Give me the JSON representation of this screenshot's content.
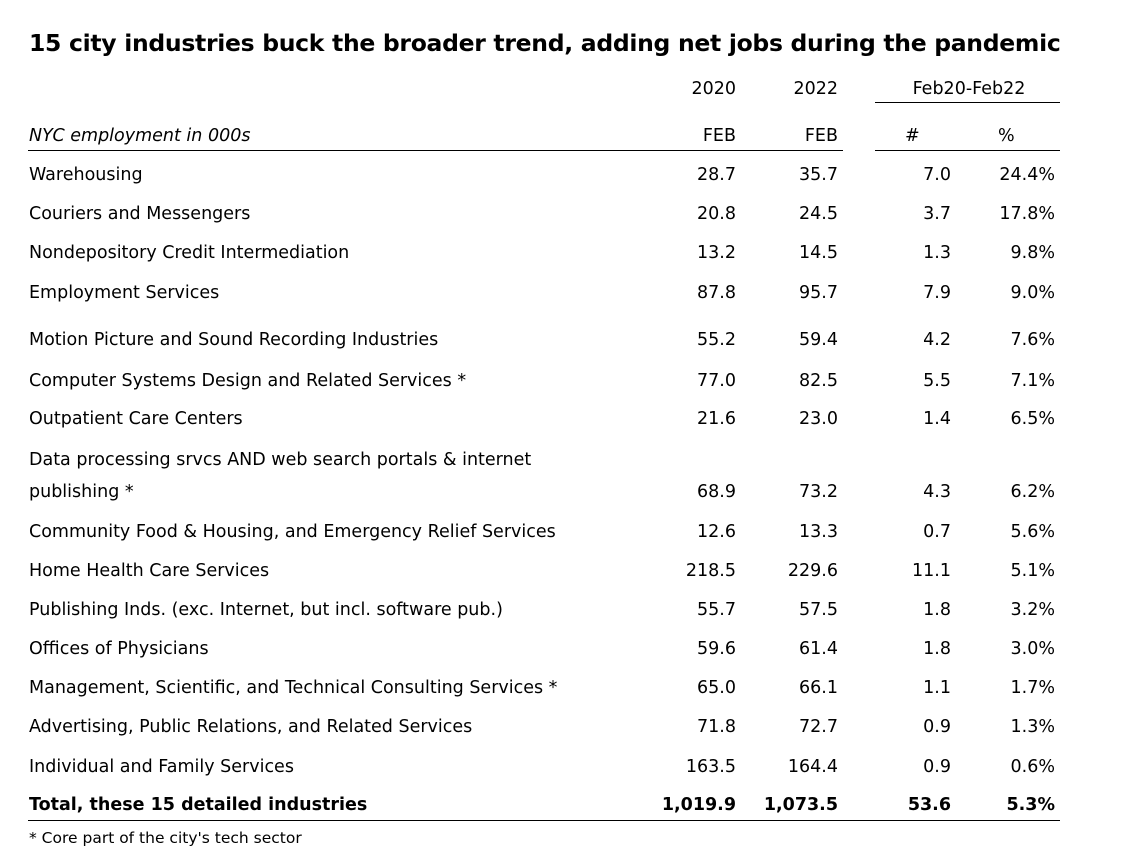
{
  "title": "15 city industries  buck the broader trend, adding net jobs during the pandemic",
  "header": {
    "year_2020": "2020",
    "year_2022": "2022",
    "change_period": "Feb20-Feb22",
    "row_label": "NYC employment in 000s",
    "month_2020": "FEB",
    "month_2022": "FEB",
    "num_change": "#",
    "pct_change": "%"
  },
  "rows": [
    {
      "industry": "Warehousing",
      "feb2020": "28.7",
      "feb2022": "35.7",
      "num": "7.0",
      "pct": "24.4%"
    },
    {
      "industry": "Couriers and Messengers",
      "feb2020": "20.8",
      "feb2022": "24.5",
      "num": "3.7",
      "pct": "17.8%"
    },
    {
      "industry": "Nondepository Credit Intermediation",
      "feb2020": "13.2",
      "feb2022": "14.5",
      "num": "1.3",
      "pct": "9.8%"
    },
    {
      "industry": "Employment Services",
      "feb2020": "87.8",
      "feb2022": "95.7",
      "num": "7.9",
      "pct": "9.0%"
    },
    {
      "industry": "Motion Picture and Sound Recording Industries",
      "feb2020": "55.2",
      "feb2022": "59.4",
      "num": "4.2",
      "pct": "7.6%"
    },
    {
      "industry": "Computer Systems Design and Related Services *",
      "feb2020": "77.0",
      "feb2022": "82.5",
      "num": "5.5",
      "pct": "7.1%"
    },
    {
      "industry": "Outpatient Care Centers",
      "feb2020": "21.6",
      "feb2022": "23.0",
      "num": "1.4",
      "pct": "6.5%"
    },
    {
      "industry_line1": "Data processing srvcs AND web search portals & internet",
      "industry_line2": "publishing *",
      "feb2020": "68.9",
      "feb2022": "73.2",
      "num": "4.3",
      "pct": "6.2%"
    },
    {
      "industry": "Community Food & Housing, and Emergency Relief Services",
      "feb2020": "12.6",
      "feb2022": "13.3",
      "num": "0.7",
      "pct": "5.6%"
    },
    {
      "industry": "Home Health Care Services",
      "feb2020": "218.5",
      "feb2022": "229.6",
      "num": "11.1",
      "pct": "5.1%"
    },
    {
      "industry": "Publishing Inds. (exc. Internet, but incl. software pub.)",
      "feb2020": "55.7",
      "feb2022": "57.5",
      "num": "1.8",
      "pct": "3.2%"
    },
    {
      "industry": "Offices of Physicians",
      "feb2020": "59.6",
      "feb2022": "61.4",
      "num": "1.8",
      "pct": "3.0%"
    },
    {
      "industry": "Management, Scientific, and Technical Consulting Services *",
      "feb2020": "65.0",
      "feb2022": "66.1",
      "num": "1.1",
      "pct": "1.7%"
    },
    {
      "industry": "Advertising, Public Relations, and Related Services",
      "feb2020": "71.8",
      "feb2022": "72.7",
      "num": "0.9",
      "pct": "1.3%"
    },
    {
      "industry": "Individual and Family Services",
      "feb2020": "163.5",
      "feb2022": "164.4",
      "num": "0.9",
      "pct": "0.6%"
    }
  ],
  "total": {
    "industry": "Total, these 15 detailed industries",
    "feb2020": "1,019.9",
    "feb2022": "1,073.5",
    "num": "53.6",
    "pct": "5.3%"
  },
  "footnote": "* Core part of the city's tech sector"
}
